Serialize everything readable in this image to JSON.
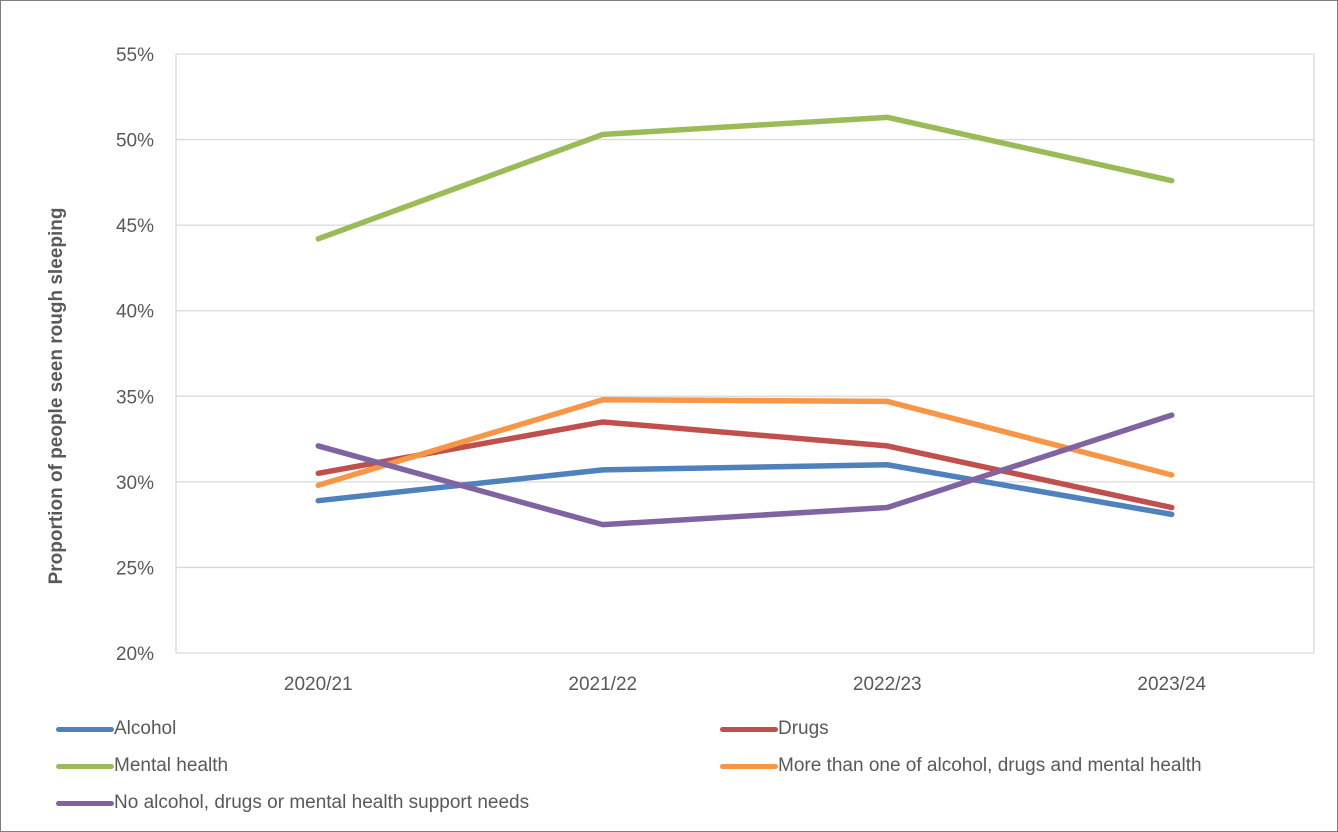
{
  "chart_data": {
    "type": "line",
    "categories": [
      "2020/21",
      "2021/22",
      "2022/23",
      "2023/24"
    ],
    "ylabel": "Proportion of people seen rough sleeping",
    "xlabel": "",
    "ylim": [
      0.2,
      0.55
    ],
    "yticks": [
      "20%",
      "25%",
      "30%",
      "35%",
      "40%",
      "45%",
      "50%",
      "55%"
    ],
    "grid": true,
    "legend_position": "bottom",
    "series": [
      {
        "name": "Alcohol",
        "color": "#4f81bd",
        "values": [
          0.289,
          0.307,
          0.31,
          0.281
        ]
      },
      {
        "name": "Drugs",
        "color": "#c0504d",
        "values": [
          0.305,
          0.335,
          0.321,
          0.285
        ]
      },
      {
        "name": "Mental health",
        "color": "#9bbb59",
        "values": [
          0.442,
          0.503,
          0.513,
          0.476
        ]
      },
      {
        "name": "More than one of alcohol, drugs and mental health",
        "color": "#f79646",
        "values": [
          0.298,
          0.348,
          0.347,
          0.304
        ]
      },
      {
        "name": "No alcohol, drugs or mental health support needs",
        "color": "#8064a2",
        "values": [
          0.321,
          0.275,
          0.285,
          0.339
        ]
      }
    ]
  }
}
